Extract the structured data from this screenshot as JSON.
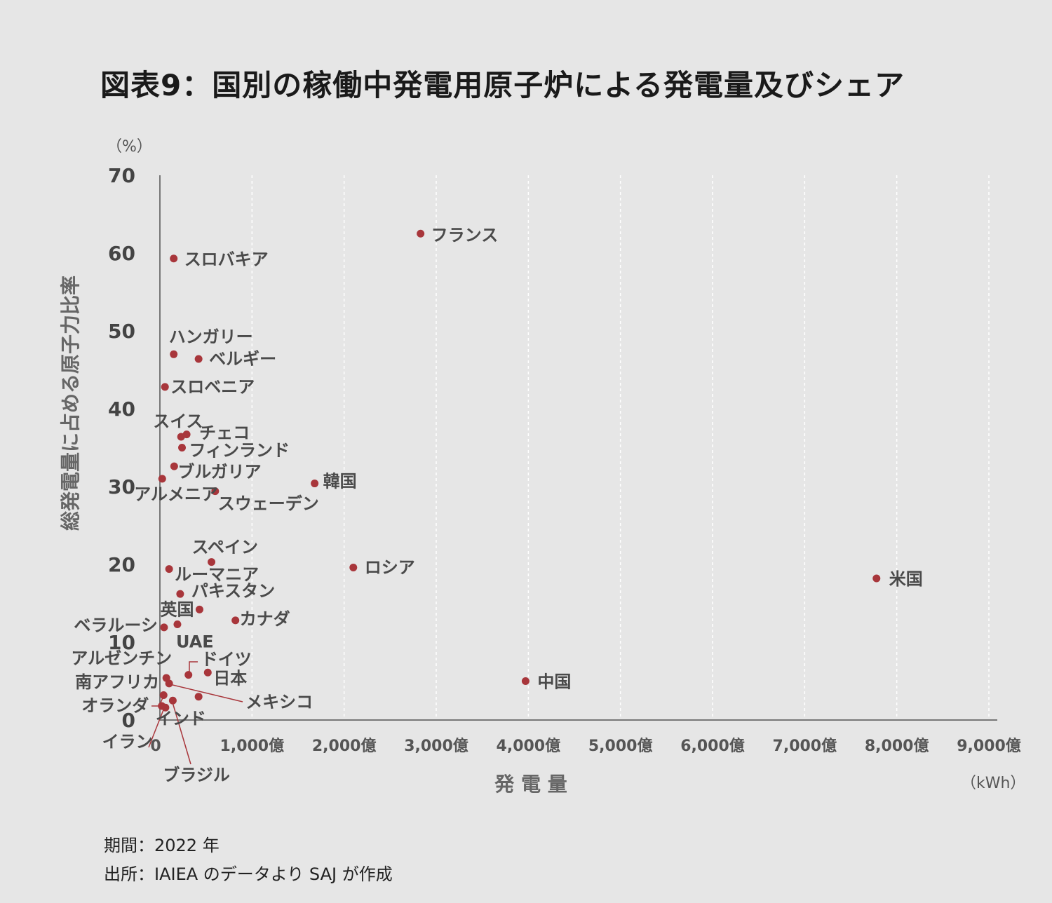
{
  "title": "図表9：国別の稼働中発電用原子炉による発電量及びシェア",
  "footnotes": {
    "period": "期間：2022 年",
    "source": "出所：IAIEA のデータより SAJ が作成"
  },
  "colors": {
    "point": "#a8363b",
    "axis": "#777777",
    "grid": "#ffffff",
    "background": "#e6e6e6"
  },
  "chart_data": {
    "type": "scatter",
    "title": "図表9：国別の稼働中発電用原子炉による発電量及びシェア",
    "xlabel": "発 電 量",
    "ylabel": "総発電量に占める原子力比率",
    "x_unit": "（kWh）",
    "y_unit": "（%）",
    "xlim": [
      0,
      9000
    ],
    "ylim": [
      0,
      70
    ],
    "x_ticks": [
      {
        "value": 0,
        "label": "0"
      },
      {
        "value": 1000,
        "label": "1,000億"
      },
      {
        "value": 2000,
        "label": "2,000億"
      },
      {
        "value": 3000,
        "label": "3,000億"
      },
      {
        "value": 4000,
        "label": "4,000億"
      },
      {
        "value": 5000,
        "label": "5,000億"
      },
      {
        "value": 6000,
        "label": "6,000億"
      },
      {
        "value": 7000,
        "label": "7,000億"
      },
      {
        "value": 8000,
        "label": "8,000億"
      },
      {
        "value": 9000,
        "label": "9,000億"
      }
    ],
    "y_ticks": [
      {
        "value": 0,
        "label": "0"
      },
      {
        "value": 10,
        "label": "10"
      },
      {
        "value": 20,
        "label": "20"
      },
      {
        "value": 30,
        "label": "30"
      },
      {
        "value": 40,
        "label": "40"
      },
      {
        "value": 50,
        "label": "50"
      },
      {
        "value": 60,
        "label": "60"
      },
      {
        "value": 70,
        "label": "70"
      }
    ],
    "grid": "vertical dashed",
    "points": [
      {
        "name": "フランス",
        "x": 2830,
        "y": 62.5
      },
      {
        "name": "スロバキア",
        "x": 150,
        "y": 59.3
      },
      {
        "name": "ハンガリー",
        "x": 150,
        "y": 47.0
      },
      {
        "name": "ベルギー",
        "x": 420,
        "y": 46.4
      },
      {
        "name": "スロベニア",
        "x": 55,
        "y": 42.8
      },
      {
        "name": "スイス",
        "x": 230,
        "y": 36.4
      },
      {
        "name": "チェコ",
        "x": 290,
        "y": 36.7
      },
      {
        "name": "フィンランド",
        "x": 240,
        "y": 35.0
      },
      {
        "name": "ブルガリア",
        "x": 155,
        "y": 32.6
      },
      {
        "name": "アルメニア",
        "x": 25,
        "y": 31.0
      },
      {
        "name": "スウェーデン",
        "x": 600,
        "y": 29.4
      },
      {
        "name": "韓国",
        "x": 1680,
        "y": 30.4
      },
      {
        "name": "スペイン",
        "x": 560,
        "y": 20.3
      },
      {
        "name": "ルーマニア",
        "x": 100,
        "y": 19.4
      },
      {
        "name": "ロシア",
        "x": 2100,
        "y": 19.6
      },
      {
        "name": "米国",
        "x": 7780,
        "y": 18.2
      },
      {
        "name": "パキスタン",
        "x": 220,
        "y": 16.2
      },
      {
        "name": "英国",
        "x": 430,
        "y": 14.2
      },
      {
        "name": "カナダ",
        "x": 820,
        "y": 12.8
      },
      {
        "name": "ベラルーシ",
        "x": 45,
        "y": 11.9
      },
      {
        "name": "UAE",
        "x": 190,
        "y": 12.3
      },
      {
        "name": "ドイツ",
        "x": 310,
        "y": 5.8
      },
      {
        "name": "日本",
        "x": 520,
        "y": 6.1
      },
      {
        "name": "アルゼンチン",
        "x": 70,
        "y": 5.4
      },
      {
        "name": "南アフリカ",
        "x": 100,
        "y": 4.7
      },
      {
        "name": "中国",
        "x": 3970,
        "y": 5.0
      },
      {
        "name": "オランダ",
        "x": 40,
        "y": 3.2
      },
      {
        "name": "メキシコ",
        "x": 420,
        "y": 3.0
      },
      {
        "name": "ブラジル",
        "x": 140,
        "y": 2.5
      },
      {
        "name": "インド",
        "x": 60,
        "y": 1.6
      },
      {
        "name": "イラン",
        "x": 20,
        "y": 1.8
      }
    ]
  }
}
